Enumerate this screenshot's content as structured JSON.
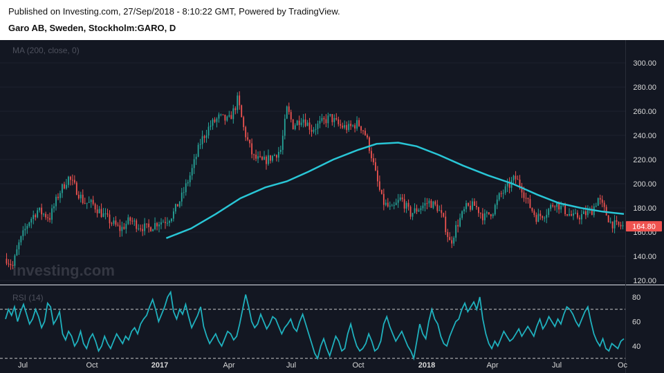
{
  "header": {
    "published": "Published on Investing.com, 27/Sep/2018 - 8:10:22 GMT, Powered by TradingView.",
    "symbol": "Garo AB, Sweden, Stockholm:GARO, D"
  },
  "watermark": "investing.com",
  "colors": {
    "background": "#131722",
    "candle_up": "#26a69a",
    "candle_down": "#ef5350",
    "ma_line": "#29c6d6",
    "rsi_line": "#1fb1be",
    "price_tag": "#ef5350"
  },
  "chart_data": [
    {
      "type": "candlestick",
      "indicator_label": "MA (200, close, 0)",
      "y_ticks": [
        "300.00",
        "280.00",
        "260.00",
        "240.00",
        "220.00",
        "200.00",
        "180.00",
        "160.00",
        "140.00",
        "120.00"
      ],
      "ylim": [
        120,
        300
      ],
      "last_price": "164.80",
      "x_ticks": [
        {
          "label": "Jul",
          "bold": false
        },
        {
          "label": "Oct",
          "bold": false
        },
        {
          "label": "2017",
          "bold": true
        },
        {
          "label": "Apr",
          "bold": false
        },
        {
          "label": "Jul",
          "bold": false
        },
        {
          "label": "Oct",
          "bold": false
        },
        {
          "label": "2018",
          "bold": true
        },
        {
          "label": "Apr",
          "bold": false
        },
        {
          "label": "Jul",
          "bold": false
        },
        {
          "label": "Oc",
          "bold": false
        }
      ],
      "price_path": [
        [
          0,
          138
        ],
        [
          0.01,
          132
        ],
        [
          0.02,
          150
        ],
        [
          0.035,
          168
        ],
        [
          0.05,
          178
        ],
        [
          0.07,
          172
        ],
        [
          0.085,
          192
        ],
        [
          0.1,
          205
        ],
        [
          0.11,
          198
        ],
        [
          0.125,
          185
        ],
        [
          0.14,
          183
        ],
        [
          0.155,
          175
        ],
        [
          0.17,
          168
        ],
        [
          0.185,
          162
        ],
        [
          0.2,
          170
        ],
        [
          0.215,
          165
        ],
        [
          0.23,
          163
        ],
        [
          0.245,
          168
        ],
        [
          0.26,
          170
        ],
        [
          0.27,
          175
        ],
        [
          0.285,
          190
        ],
        [
          0.3,
          210
        ],
        [
          0.315,
          235
        ],
        [
          0.33,
          248
        ],
        [
          0.345,
          255
        ],
        [
          0.36,
          252
        ],
        [
          0.37,
          262
        ],
        [
          0.375,
          270
        ],
        [
          0.385,
          245
        ],
        [
          0.4,
          222
        ],
        [
          0.415,
          218
        ],
        [
          0.43,
          222
        ],
        [
          0.445,
          228
        ],
        [
          0.455,
          262
        ],
        [
          0.465,
          248
        ],
        [
          0.48,
          255
        ],
        [
          0.495,
          245
        ],
        [
          0.51,
          250
        ],
        [
          0.525,
          255
        ],
        [
          0.54,
          248
        ],
        [
          0.555,
          246
        ],
        [
          0.57,
          250
        ],
        [
          0.58,
          244
        ],
        [
          0.59,
          228
        ],
        [
          0.6,
          205
        ],
        [
          0.61,
          185
        ],
        [
          0.625,
          178
        ],
        [
          0.64,
          188
        ],
        [
          0.655,
          175
        ],
        [
          0.67,
          180
        ],
        [
          0.685,
          185
        ],
        [
          0.7,
          180
        ],
        [
          0.71,
          168
        ],
        [
          0.72,
          150
        ],
        [
          0.73,
          165
        ],
        [
          0.745,
          180
        ],
        [
          0.76,
          182
        ],
        [
          0.775,
          172
        ],
        [
          0.79,
          178
        ],
        [
          0.8,
          190
        ],
        [
          0.815,
          198
        ],
        [
          0.825,
          205
        ],
        [
          0.835,
          198
        ],
        [
          0.845,
          185
        ],
        [
          0.86,
          172
        ],
        [
          0.875,
          176
        ],
        [
          0.89,
          185
        ],
        [
          0.905,
          178
        ],
        [
          0.92,
          172
        ],
        [
          0.935,
          174
        ],
        [
          0.95,
          178
        ],
        [
          0.96,
          188
        ],
        [
          0.97,
          178
        ],
        [
          0.98,
          168
        ],
        [
          0.99,
          165
        ],
        [
          1.0,
          165
        ]
      ],
      "ma_path": [
        [
          0.26,
          155
        ],
        [
          0.3,
          163
        ],
        [
          0.34,
          175
        ],
        [
          0.38,
          188
        ],
        [
          0.42,
          197
        ],
        [
          0.455,
          202
        ],
        [
          0.49,
          210
        ],
        [
          0.53,
          220
        ],
        [
          0.57,
          228
        ],
        [
          0.6,
          233
        ],
        [
          0.635,
          234
        ],
        [
          0.665,
          231
        ],
        [
          0.7,
          224
        ],
        [
          0.74,
          215
        ],
        [
          0.78,
          207
        ],
        [
          0.82,
          200
        ],
        [
          0.86,
          191
        ],
        [
          0.895,
          184
        ],
        [
          0.93,
          180
        ],
        [
          0.965,
          177
        ],
        [
          1.0,
          175
        ]
      ]
    },
    {
      "type": "line",
      "indicator_label": "RSI (14)",
      "y_ticks": [
        "80",
        "60",
        "40"
      ],
      "ylim": [
        20,
        90
      ],
      "reference_lines": [
        70,
        30
      ],
      "values": [
        62,
        70,
        65,
        72,
        60,
        68,
        74,
        66,
        58,
        62,
        70,
        64,
        55,
        60,
        75,
        72,
        58,
        62,
        68,
        50,
        45,
        52,
        48,
        40,
        44,
        52,
        42,
        38,
        46,
        50,
        44,
        36,
        40,
        48,
        42,
        38,
        44,
        50,
        46,
        42,
        48,
        45,
        52,
        55,
        50,
        58,
        62,
        65,
        72,
        78,
        70,
        60,
        66,
        72,
        80,
        84,
        68,
        62,
        70,
        66,
        74,
        64,
        55,
        60,
        65,
        72,
        56,
        48,
        42,
        46,
        50,
        44,
        40,
        46,
        52,
        50,
        45,
        48,
        58,
        70,
        82,
        72,
        60,
        55,
        58,
        66,
        60,
        54,
        58,
        64,
        62,
        56,
        50,
        55,
        58,
        62,
        55,
        52,
        60,
        66,
        58,
        50,
        42,
        34,
        30,
        40,
        46,
        38,
        32,
        40,
        48,
        44,
        36,
        38,
        50,
        58,
        48,
        40,
        36,
        38,
        42,
        50,
        44,
        36,
        38,
        44,
        58,
        64,
        56,
        50,
        44,
        48,
        52,
        46,
        40,
        36,
        30,
        44,
        58,
        50,
        46,
        60,
        70,
        62,
        58,
        48,
        42,
        40,
        48,
        54,
        60,
        62,
        70,
        75,
        68,
        72,
        76,
        70,
        80,
        62,
        50,
        42,
        38,
        44,
        40,
        46,
        52,
        48,
        44,
        46,
        50,
        54,
        48,
        52,
        56,
        52,
        48,
        56,
        62,
        54,
        58,
        64,
        60,
        56,
        62,
        58,
        66,
        72,
        70,
        66,
        60,
        56,
        62,
        68,
        72,
        60,
        50,
        44,
        40,
        46,
        38,
        36,
        42,
        40,
        38,
        44,
        46
      ]
    }
  ]
}
